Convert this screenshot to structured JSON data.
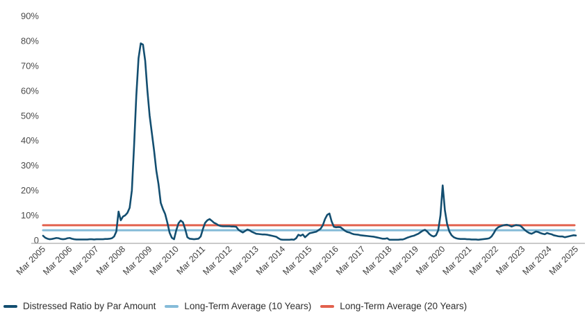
{
  "chart_data": {
    "type": "line",
    "title": "",
    "grid": "none",
    "legend_position": "bottom-left",
    "x_axis": {
      "start": "Mar 2005",
      "end": "Mar 2025",
      "frequency": "monthly",
      "tick_labels": [
        "Mar 2005",
        "Mar 2006",
        "Mar 2007",
        "Mar 2008",
        "Mar 2009",
        "Mar 2010",
        "Mar 2011",
        "Mar 2012",
        "Mar 2013",
        "Mar 2014",
        "Mar 2015",
        "Mar 2016",
        "Mar 2017",
        "Mar 2018",
        "Mar 2019",
        "Mar 2020",
        "Mar 2021",
        "Mar 2022",
        "Mar 2023",
        "Mar 2024",
        "Mar 2025"
      ]
    },
    "y_axis": {
      "min": 0,
      "max": 90,
      "unit": "%",
      "tick_values": [
        90,
        80,
        70,
        60,
        50,
        40,
        30,
        20,
        10,
        0
      ],
      "tick_labels": [
        "90%",
        "80%",
        "70%",
        "60%",
        "50%",
        "40%",
        "30%",
        "20%",
        "10%",
        "0"
      ]
    },
    "series": [
      {
        "name": "Distressed Ratio by Par Amount",
        "type": "line",
        "color": "#134e70",
        "values": [
          1.8,
          1.0,
          0.6,
          0.4,
          0.5,
          0.7,
          0.9,
          0.8,
          0.5,
          0.4,
          0.5,
          0.8,
          0.9,
          0.6,
          0.4,
          0.3,
          0.3,
          0.3,
          0.3,
          0.3,
          0.3,
          0.4,
          0.4,
          0.3,
          0.4,
          0.4,
          0.4,
          0.4,
          0.5,
          0.5,
          0.6,
          0.8,
          1.5,
          3.5,
          11.5,
          8.0,
          9.5,
          10.0,
          11.0,
          13.0,
          20.0,
          38.0,
          58.0,
          73.0,
          79.0,
          78.5,
          72.0,
          60.0,
          50.0,
          43.0,
          36.0,
          28.0,
          22.5,
          15.0,
          12.5,
          10.5,
          7.0,
          3.0,
          1.0,
          0.4,
          4.0,
          6.8,
          7.9,
          7.2,
          4.5,
          1.2,
          0.6,
          0.5,
          0.4,
          0.5,
          0.6,
          1.5,
          4.5,
          7.0,
          8.0,
          8.5,
          7.8,
          7.0,
          6.6,
          6.0,
          5.7,
          5.6,
          5.6,
          5.6,
          5.6,
          5.5,
          5.5,
          5.4,
          4.2,
          3.6,
          3.1,
          3.7,
          4.3,
          4.0,
          3.4,
          3.0,
          2.6,
          2.5,
          2.4,
          2.3,
          2.3,
          2.2,
          2.0,
          1.8,
          1.6,
          1.4,
          0.8,
          0.3,
          0.2,
          0.2,
          0.2,
          0.2,
          0.3,
          0.2,
          0.8,
          2.2,
          1.8,
          2.3,
          1.2,
          2.0,
          2.8,
          3.0,
          3.2,
          3.4,
          4.0,
          4.6,
          6.0,
          8.5,
          10.2,
          10.7,
          7.5,
          5.4,
          5.2,
          5.3,
          5.2,
          4.5,
          3.8,
          3.3,
          3.1,
          2.7,
          2.4,
          2.3,
          2.2,
          2.0,
          1.9,
          1.8,
          1.7,
          1.6,
          1.5,
          1.4,
          1.2,
          1.0,
          0.8,
          0.6,
          0.6,
          0.8,
          0.2,
          0.2,
          0.2,
          0.2,
          0.2,
          0.3,
          0.3,
          0.6,
          1.0,
          1.3,
          1.6,
          1.8,
          2.2,
          2.6,
          3.2,
          3.8,
          4.2,
          3.5,
          2.5,
          1.8,
          1.5,
          2.0,
          4.0,
          10.0,
          22.0,
          12.0,
          6.5,
          3.5,
          2.0,
          1.2,
          0.8,
          0.6,
          0.5,
          0.5,
          0.5,
          0.4,
          0.4,
          0.3,
          0.3,
          0.3,
          0.2,
          0.3,
          0.4,
          0.5,
          0.6,
          0.8,
          1.5,
          2.8,
          4.4,
          5.2,
          5.6,
          5.9,
          6.1,
          6.2,
          5.9,
          5.5,
          5.8,
          6.1,
          6.0,
          5.8,
          5.0,
          4.1,
          3.4,
          2.9,
          2.6,
          3.0,
          3.5,
          3.3,
          2.9,
          2.6,
          2.4,
          2.9,
          2.6,
          2.4,
          2.0,
          1.8,
          1.6,
          1.5,
          1.5,
          1.2,
          1.4,
          1.6,
          1.8,
          2.0,
          1.9
        ]
      },
      {
        "name": "Long-Term Average (10 Years)",
        "type": "average-line",
        "color": "#85bbd8",
        "value": 4.0
      },
      {
        "name": "Long-Term Average (20 Years)",
        "type": "average-line",
        "color": "#e2614d",
        "value": 6.0
      }
    ]
  },
  "legend": {
    "items": [
      {
        "label": "Distressed Ratio by Par Amount",
        "color": "#134e70"
      },
      {
        "label": "Long-Term Average (10 Years)",
        "color": "#85bbd8"
      },
      {
        "label": "Long-Term Average (20 Years)",
        "color": "#e2614d"
      }
    ]
  },
  "colors": {
    "series_navy": "#134e70",
    "avg_10y_blue": "#85bbd8",
    "avg_20y_red": "#e2614d",
    "axis_line": "#ababab",
    "tick_text": "#3e3e3e"
  }
}
